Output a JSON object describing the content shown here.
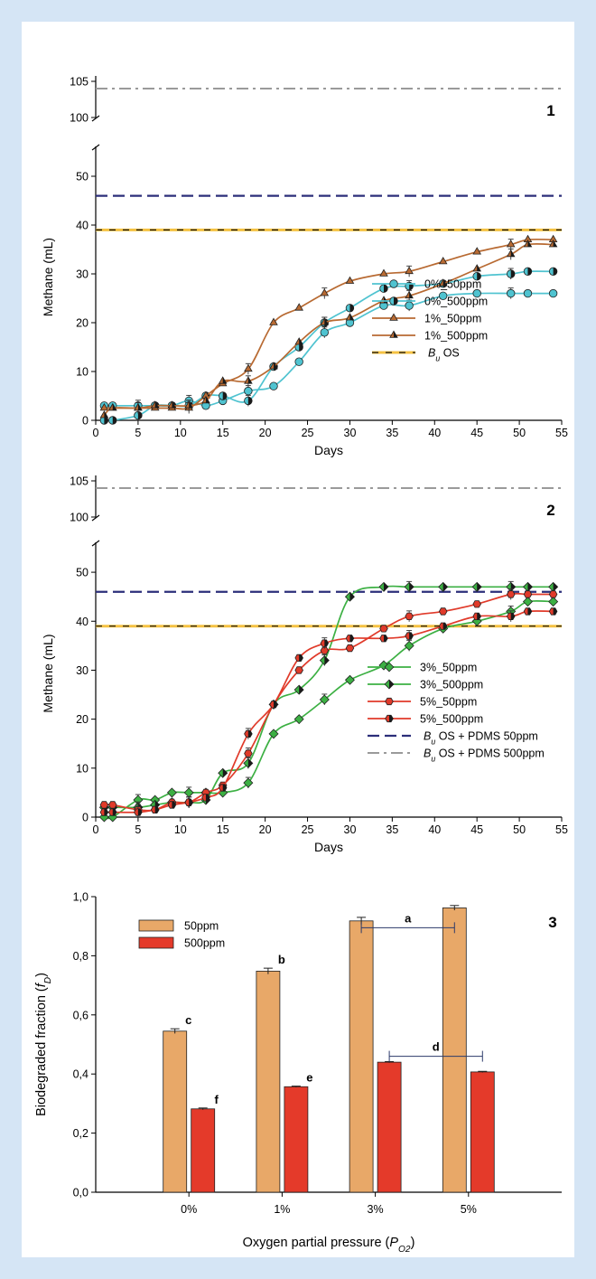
{
  "colors": {
    "frame": "#d5e5f5",
    "teal": "#4fc3d0",
    "brown": "#b86a32",
    "green": "#3cb043",
    "red": "#e03a2a",
    "navy": "#2c2f7a",
    "gray": "#9a9a9a",
    "gold": "#f5c242",
    "bar50": "#e8a868",
    "bar500": "#e43a2a"
  },
  "chart_data": [
    {
      "type": "line",
      "panel_label": "1",
      "xlabel": "Days",
      "ylabel": "Methane (mL)",
      "xlim": [
        0,
        55
      ],
      "ylim_lower": [
        0,
        55
      ],
      "ylim_upper": [
        100,
        105
      ],
      "x_ticks": [
        "0",
        "5",
        "10",
        "15",
        "20",
        "25",
        "30",
        "35",
        "40",
        "45",
        "50",
        "55"
      ],
      "y_ticks_lower": [
        "0",
        "10",
        "20",
        "30",
        "40",
        "50"
      ],
      "y_ticks_upper": [
        "100",
        "105"
      ],
      "series": [
        {
          "name": "0%_50ppm",
          "color": "teal",
          "marker": "circle",
          "x": [
            1,
            2,
            5,
            7,
            9,
            11,
            13,
            15,
            18,
            21,
            24,
            27,
            30,
            34,
            37,
            41,
            45,
            49,
            51,
            54
          ],
          "y": [
            3,
            3,
            3,
            3,
            3,
            4,
            3,
            4,
            6,
            7,
            12,
            18,
            20,
            23.5,
            23.5,
            25.5,
            26,
            26,
            26,
            26
          ]
        },
        {
          "name": "0%_500ppm",
          "color": "teal",
          "marker": "half-circle",
          "x": [
            1,
            2,
            5,
            7,
            9,
            11,
            13,
            15,
            18,
            21,
            24,
            27,
            30,
            34,
            37,
            41,
            45,
            49,
            51,
            54
          ],
          "y": [
            0,
            0,
            1,
            3,
            3,
            3,
            5,
            5,
            4,
            11,
            15,
            20,
            23,
            27,
            27.5,
            28,
            29.5,
            30,
            30.5,
            30.5
          ]
        },
        {
          "name": "1%_50ppm",
          "color": "brown",
          "marker": "triangle",
          "x": [
            1,
            2,
            5,
            7,
            9,
            11,
            13,
            15,
            18,
            21,
            24,
            27,
            30,
            34,
            37,
            41,
            45,
            49,
            51,
            54
          ],
          "y": [
            2.5,
            2.5,
            2.5,
            2.5,
            2.5,
            2.5,
            5,
            7.5,
            10.5,
            20,
            23,
            26,
            28.5,
            30,
            30.5,
            32.5,
            34.5,
            36,
            37,
            37
          ]
        },
        {
          "name": "1%_500ppm",
          "color": "brown",
          "marker": "half-triangle",
          "x": [
            1,
            2,
            5,
            7,
            9,
            11,
            13,
            15,
            18,
            21,
            24,
            27,
            30,
            34,
            37,
            41,
            45,
            49,
            51,
            54
          ],
          "y": [
            1,
            2.5,
            2.5,
            3,
            3,
            3,
            4,
            8,
            8,
            11,
            16,
            20,
            21,
            24.5,
            25.5,
            28,
            31,
            34,
            36,
            36
          ]
        }
      ],
      "reference_lines": [
        {
          "name": "B",
          "name_sub": "u",
          "name_rest": " OS",
          "y": 39,
          "style": "gold-black-dash",
          "in_legend": true
        },
        {
          "name": "B OS + PDMS 50ppm",
          "y": 46,
          "style": "navy-dash",
          "in_legend": false
        },
        {
          "name": "B OS + PDMS 500ppm",
          "y": 104,
          "style": "gray-dashdot",
          "in_legend": false
        }
      ]
    },
    {
      "type": "line",
      "panel_label": "2",
      "xlabel": "Days",
      "ylabel": "Methane (mL)",
      "xlim": [
        0,
        55
      ],
      "ylim_lower": [
        0,
        55
      ],
      "ylim_upper": [
        100,
        105
      ],
      "x_ticks": [
        "0",
        "5",
        "10",
        "15",
        "20",
        "25",
        "30",
        "35",
        "40",
        "45",
        "50",
        "55"
      ],
      "y_ticks_lower": [
        "0",
        "10",
        "20",
        "30",
        "40",
        "50"
      ],
      "y_ticks_upper": [
        "100",
        "105"
      ],
      "series": [
        {
          "name": "3%_50ppm",
          "color": "green",
          "marker": "diamond",
          "x": [
            1,
            2,
            5,
            7,
            9,
            11,
            13,
            15,
            18,
            21,
            24,
            27,
            30,
            34,
            37,
            41,
            45,
            49,
            51,
            54
          ],
          "y": [
            0,
            0,
            3.5,
            3.5,
            5,
            5,
            5,
            5,
            7,
            17,
            20,
            24,
            28,
            31,
            35,
            38.5,
            40,
            42,
            44,
            44
          ]
        },
        {
          "name": "3%_500ppm",
          "color": "green",
          "marker": "half-diamond",
          "x": [
            1,
            2,
            5,
            7,
            9,
            11,
            13,
            15,
            18,
            21,
            24,
            27,
            30,
            34,
            37,
            41,
            45,
            49,
            51,
            54
          ],
          "y": [
            2,
            2,
            2,
            2.5,
            3,
            3,
            3.5,
            9,
            11,
            23,
            26,
            32,
            45,
            47,
            47,
            47,
            47,
            47,
            47,
            47
          ]
        },
        {
          "name": "5%_50ppm",
          "color": "red",
          "marker": "hexagon",
          "x": [
            1,
            2,
            5,
            7,
            9,
            11,
            13,
            15,
            18,
            21,
            24,
            27,
            30,
            34,
            37,
            41,
            45,
            49,
            51,
            54
          ],
          "y": [
            2.5,
            2.5,
            1.5,
            1.5,
            3,
            3,
            5,
            6.5,
            13,
            23,
            30,
            34,
            34.5,
            38.5,
            41,
            42,
            43.5,
            45.5,
            45.5,
            45.5
          ]
        },
        {
          "name": "5%_500ppm",
          "color": "red",
          "marker": "half-hexagon",
          "x": [
            1,
            2,
            5,
            7,
            9,
            11,
            13,
            15,
            18,
            21,
            24,
            27,
            30,
            34,
            37,
            41,
            45,
            49,
            51,
            54
          ],
          "y": [
            1,
            1,
            1,
            1.5,
            2.5,
            3,
            4,
            6,
            17,
            23,
            32.5,
            35.5,
            36.5,
            36.5,
            37,
            39,
            41,
            41,
            42,
            42
          ]
        }
      ],
      "reference_lines": [
        {
          "name": "B",
          "name_sub": "u",
          "name_rest": " OS",
          "y": 39,
          "style": "gold-black-dash",
          "in_legend": false
        },
        {
          "name": "B",
          "name_sub": "u",
          "name_rest": " OS + PDMS 50ppm",
          "y": 46,
          "style": "navy-dash",
          "in_legend": true
        },
        {
          "name": "B",
          "name_sub": "u",
          "name_rest": " OS + PDMS 500ppm",
          "y": 104,
          "style": "gray-dashdot",
          "in_legend": true
        }
      ]
    },
    {
      "type": "bar",
      "panel_label": "3",
      "xlabel_main": "Oxygen partial pressure (",
      "xlabel_var": "P",
      "xlabel_sub": "O2",
      "xlabel_close": ")",
      "ylabel_main": "Biodegraded fraction (",
      "ylabel_var": "f",
      "ylabel_sub": "D",
      "ylabel_close": ")",
      "ylim": [
        0,
        1
      ],
      "y_ticks": [
        "0,0",
        "0,2",
        "0,4",
        "0,6",
        "0,8",
        "1,0"
      ],
      "categories": [
        "0%",
        "1%",
        "3%",
        "5%"
      ],
      "series": [
        {
          "name": "50ppm",
          "color": "bar50",
          "values": [
            0.545,
            0.748,
            0.918,
            0.962
          ],
          "errors": [
            0.008,
            0.01,
            0.012,
            0.008
          ],
          "letters": [
            "c",
            "b",
            "",
            ""
          ]
        },
        {
          "name": "500ppm",
          "color": "bar500",
          "values": [
            0.282,
            0.357,
            0.44,
            0.407
          ],
          "errors": [
            0.003,
            0.002,
            0.002,
            0.002
          ],
          "letters": [
            "f",
            "e",
            "",
            ""
          ]
        }
      ],
      "brackets": [
        {
          "label": "a",
          "series": 0,
          "from": 2,
          "to": 3,
          "y": 0.895
        },
        {
          "label": "d",
          "series": 1,
          "from": 2,
          "to": 3,
          "y": 0.46
        }
      ],
      "legend_position": "top-left"
    }
  ]
}
